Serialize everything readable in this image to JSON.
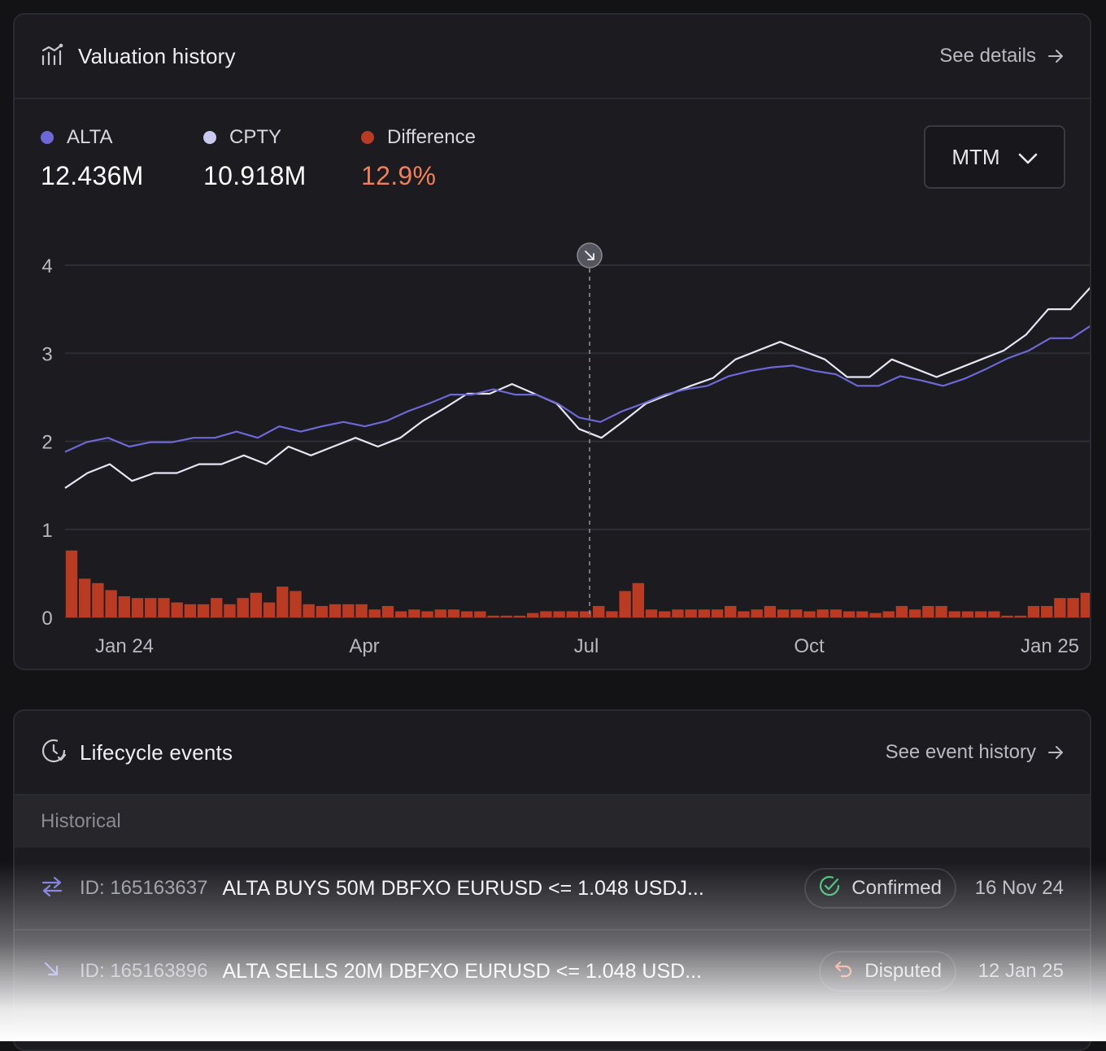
{
  "valuation": {
    "title": "Valuation history",
    "title_icon": "chart-bars-icon",
    "see_details": "See details",
    "legend": [
      {
        "label": "ALTA",
        "value": "12.436M",
        "color": "#6d68d6"
      },
      {
        "label": "CPTY",
        "value": "10.918M",
        "color": "#c9c9f2"
      },
      {
        "label": "Difference",
        "value": "12.9%",
        "color": "#b93b22",
        "value_color": "#f07f5a"
      }
    ],
    "select": {
      "value": "MTM"
    }
  },
  "chart_data": {
    "type": "line",
    "y_ticks": [
      "0",
      "1",
      "2",
      "3",
      "4"
    ],
    "ylim": [
      0,
      4
    ],
    "x_tick_labels": [
      "Jan 24",
      "Apr",
      "Jul",
      "Oct",
      "Jan 25"
    ],
    "grid": true,
    "marker": {
      "label_icon": "arrow-down-right-icon",
      "position": "Jul"
    },
    "series": [
      {
        "name": "ALTA",
        "color": "#6d68d6",
        "values": [
          1.88,
          1.99,
          2.04,
          1.94,
          1.99,
          1.99,
          2.04,
          2.04,
          2.11,
          2.04,
          2.17,
          2.11,
          2.17,
          2.22,
          2.17,
          2.23,
          2.34,
          2.43,
          2.53,
          2.53,
          2.59,
          2.53,
          2.53,
          2.43,
          2.27,
          2.22,
          2.34,
          2.43,
          2.53,
          2.59,
          2.63,
          2.74,
          2.8,
          2.84,
          2.86,
          2.8,
          2.76,
          2.63,
          2.63,
          2.74,
          2.69,
          2.63,
          2.71,
          2.82,
          2.94,
          3.03,
          3.17,
          3.17,
          3.33
        ]
      },
      {
        "name": "CPTY",
        "color": "#e6e6f5",
        "values": [
          1.47,
          1.64,
          1.74,
          1.55,
          1.64,
          1.64,
          1.74,
          1.74,
          1.84,
          1.74,
          1.94,
          1.84,
          1.94,
          2.04,
          1.94,
          2.04,
          2.23,
          2.38,
          2.54,
          2.54,
          2.65,
          2.54,
          2.43,
          2.14,
          2.04,
          2.23,
          2.43,
          2.53,
          2.63,
          2.72,
          2.93,
          3.03,
          3.13,
          3.03,
          2.93,
          2.73,
          2.73,
          2.93,
          2.83,
          2.73,
          2.83,
          2.93,
          3.03,
          3.21,
          3.5,
          3.5,
          3.78
        ]
      },
      {
        "name": "Difference",
        "color": "#b93b22",
        "values": [
          0.76,
          0.44,
          0.39,
          0.31,
          0.24,
          0.22,
          0.22,
          0.22,
          0.17,
          0.15,
          0.15,
          0.22,
          0.15,
          0.22,
          0.28,
          0.17,
          0.35,
          0.3,
          0.15,
          0.13,
          0.15,
          0.15,
          0.15,
          0.09,
          0.13,
          0.07,
          0.09,
          0.07,
          0.09,
          0.09,
          0.07,
          0.07,
          0.02,
          0.02,
          0.02,
          0.05,
          0.07,
          0.07,
          0.07,
          0.07,
          0.13,
          0.07,
          0.3,
          0.39,
          0.09,
          0.07,
          0.09,
          0.09,
          0.09,
          0.09,
          0.13,
          0.07,
          0.09,
          0.13,
          0.09,
          0.09,
          0.07,
          0.09,
          0.09,
          0.07,
          0.07,
          0.05,
          0.07,
          0.13,
          0.09,
          0.13,
          0.13,
          0.07,
          0.07,
          0.07,
          0.07,
          0.02,
          0.02,
          0.13,
          0.13,
          0.22,
          0.22,
          0.28
        ]
      }
    ]
  },
  "lifecycle": {
    "title": "Lifecycle events",
    "title_icon": "clock-check-icon",
    "see_history": "See event history",
    "section_label": "Historical",
    "events": [
      {
        "id": "ID: 165163637",
        "description": "ALTA BUYS 50M DBFXO EURUSD <= 1.048 USDJ...",
        "status": "Confirmed",
        "status_icon": "check-circle-icon",
        "date": "16 Nov 24",
        "type_icon": "swap-arrows-icon"
      },
      {
        "id": "ID: 165163896",
        "description": "ALTA SELLS 20M DBFXO EURUSD <= 1.048 USD...",
        "status": "Disputed",
        "status_icon": "undo-arrow-icon",
        "date": "12 Jan 25",
        "type_icon": "arrow-down-right-icon"
      }
    ]
  }
}
